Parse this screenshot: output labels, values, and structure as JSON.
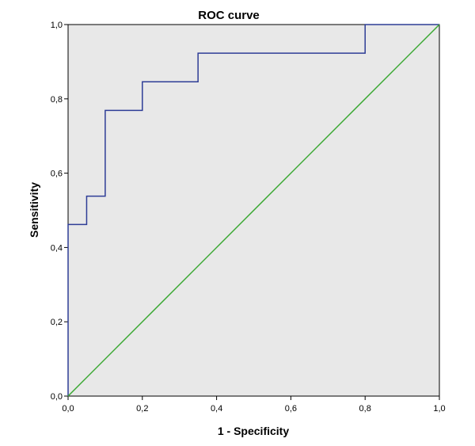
{
  "chart_data": {
    "type": "line",
    "title": "ROC curve",
    "xlabel": "1 - Specificity",
    "ylabel": "Sensitivity",
    "xlim": [
      0,
      1
    ],
    "ylim": [
      0,
      1
    ],
    "xticks": [
      0,
      0.2,
      0.4,
      0.6,
      0.8,
      1.0
    ],
    "yticks": [
      0,
      0.2,
      0.4,
      0.6,
      0.8,
      1.0
    ],
    "xtick_labels": [
      "0,0",
      "0,2",
      "0,4",
      "0,6",
      "0,8",
      "1,0"
    ],
    "ytick_labels": [
      "0,0",
      "0,2",
      "0,4",
      "0,6",
      "0,8",
      "1,0"
    ],
    "grid": false,
    "background_color": "#e8e8e8",
    "series": [
      {
        "color": "#2e3d96",
        "step": true,
        "x": [
          0.0,
          0.0,
          0.05,
          0.05,
          0.1,
          0.1,
          0.2,
          0.2,
          0.35,
          0.35,
          0.8,
          0.8,
          1.0
        ],
        "y": [
          0.0,
          0.462,
          0.462,
          0.538,
          0.538,
          0.769,
          0.769,
          0.846,
          0.846,
          0.923,
          0.923,
          1.0,
          1.0
        ]
      },
      {
        "color": "#3aa832",
        "x": [
          0.0,
          1.0
        ],
        "y": [
          0.0,
          1.0
        ]
      }
    ]
  }
}
